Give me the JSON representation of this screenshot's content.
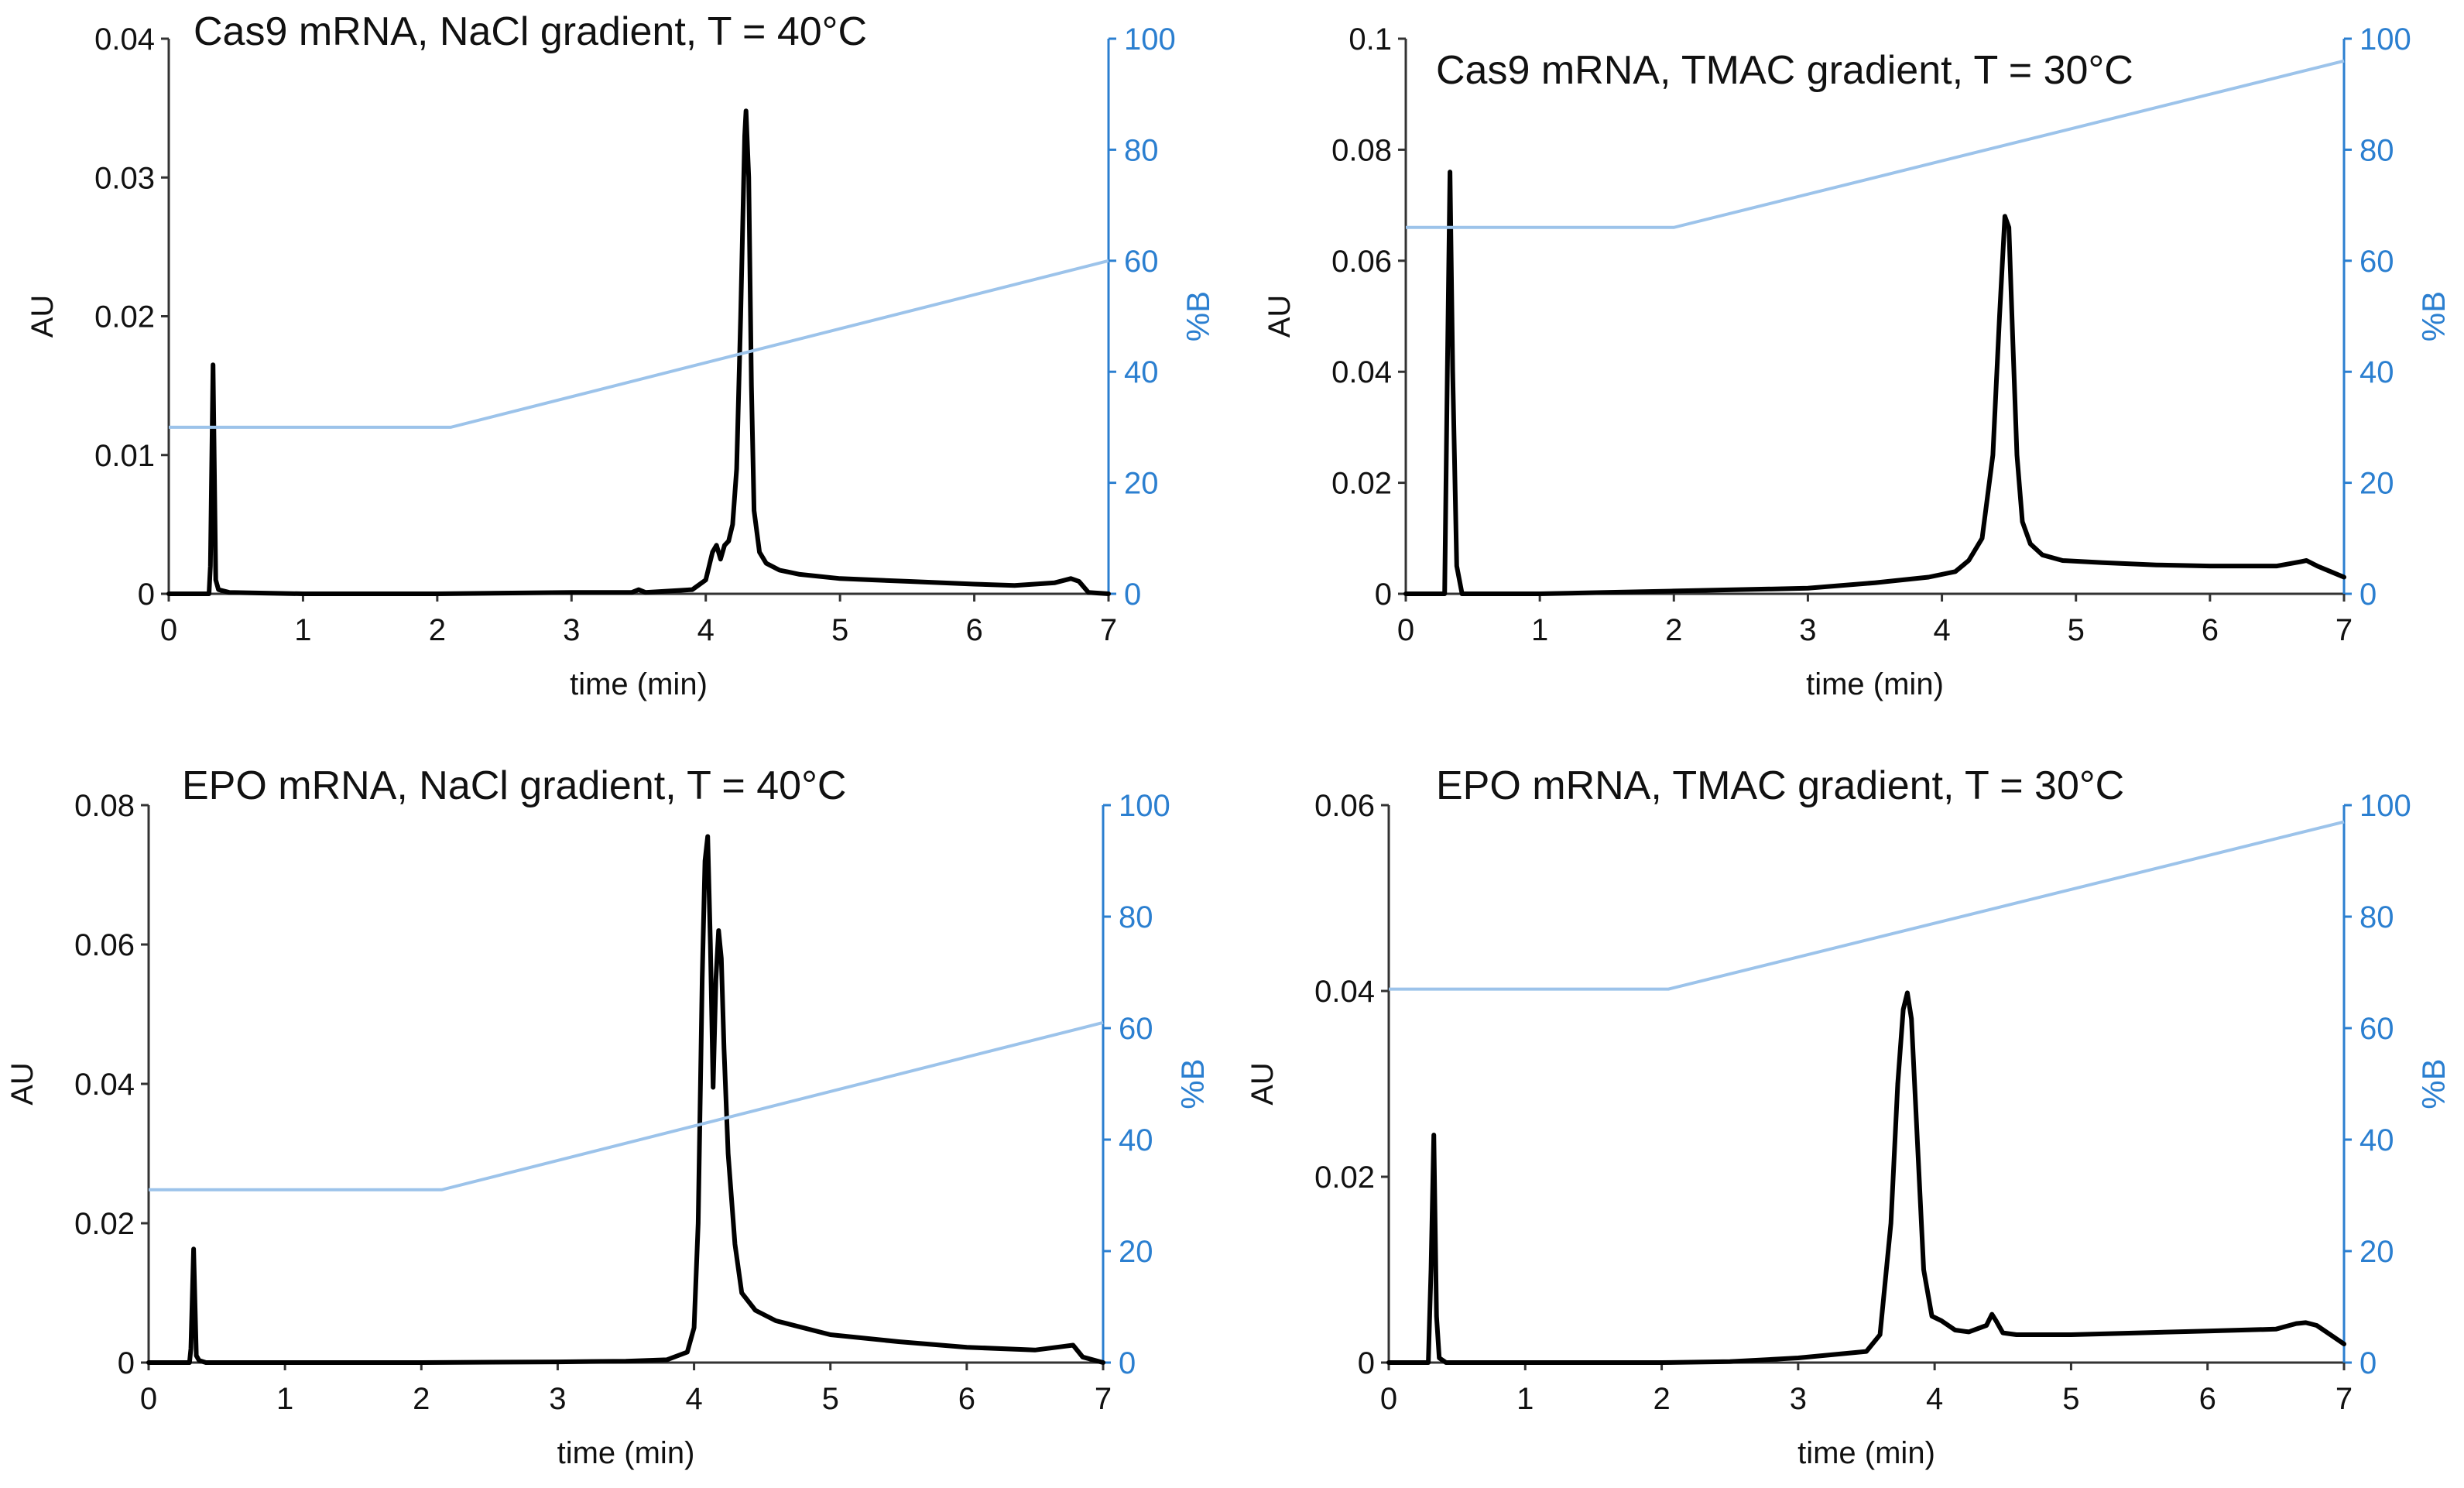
{
  "figure": {
    "colors": {
      "trace": "#000000",
      "gradient": "#9cc3ea",
      "right_axis": "#2b7fd0"
    }
  },
  "chart_data": [
    {
      "type": "line",
      "title": "Cas9 mRNA, NaCl gradient, T = 40°C",
      "xlabel": "time (min)",
      "ylabel": "AU",
      "y2label": "%B",
      "xlim": [
        0,
        7
      ],
      "ylim": [
        0,
        0.04
      ],
      "y2lim": [
        0,
        100
      ],
      "xticks": [
        "0",
        "1",
        "2",
        "3",
        "4",
        "5",
        "6",
        "7"
      ],
      "yticks": [
        "0",
        "0.01",
        "0.02",
        "0.03",
        "0.04"
      ],
      "y2ticks": [
        "0",
        "20",
        "40",
        "60",
        "80",
        "100"
      ],
      "series": [
        {
          "name": "AU",
          "axis": "left",
          "x": [
            0,
            0.3,
            0.31,
            0.33,
            0.35,
            0.37,
            0.45,
            1,
            2,
            3,
            3.45,
            3.5,
            3.55,
            3.9,
            4.0,
            4.05,
            4.08,
            4.11,
            4.14,
            4.17,
            4.2,
            4.23,
            4.26,
            4.29,
            4.3,
            4.32,
            4.34,
            4.36,
            4.4,
            4.45,
            4.55,
            4.7,
            5.0,
            5.5,
            6.0,
            6.3,
            6.6,
            6.72,
            6.78,
            6.85,
            7.0
          ],
          "y": [
            0,
            0,
            0.002,
            0.0165,
            0.001,
            0.0003,
            0.0001,
            0,
            0,
            0.0001,
            0.0001,
            0.0003,
            0.0001,
            0.0003,
            0.001,
            0.003,
            0.0035,
            0.0025,
            0.0035,
            0.0038,
            0.005,
            0.009,
            0.02,
            0.033,
            0.0348,
            0.03,
            0.015,
            0.006,
            0.003,
            0.0022,
            0.0017,
            0.0014,
            0.0011,
            0.0009,
            0.0007,
            0.0006,
            0.0008,
            0.0011,
            0.0009,
            0.0001,
            0
          ]
        },
        {
          "name": "%B",
          "axis": "right",
          "x": [
            0,
            2.1,
            7.0
          ],
          "y": [
            30,
            30,
            60
          ]
        }
      ]
    },
    {
      "type": "line",
      "title": "Cas9 mRNA, TMAC gradient, T = 30°C",
      "xlabel": "time (min)",
      "ylabel": "AU",
      "y2label": "%B",
      "xlim": [
        0,
        7
      ],
      "ylim": [
        0,
        0.1
      ],
      "y2lim": [
        0,
        100
      ],
      "xticks": [
        "0",
        "1",
        "2",
        "3",
        "4",
        "5",
        "6",
        "7"
      ],
      "yticks": [
        "0",
        "0.02",
        "0.04",
        "0.06",
        "0.08",
        "0.1"
      ],
      "y2ticks": [
        "0",
        "20",
        "40",
        "60",
        "80",
        "100"
      ],
      "series": [
        {
          "name": "AU",
          "axis": "left",
          "x": [
            0,
            0.29,
            0.31,
            0.33,
            0.35,
            0.38,
            0.42,
            1,
            2,
            3,
            3.5,
            3.9,
            4.1,
            4.2,
            4.3,
            4.38,
            4.43,
            4.47,
            4.5,
            4.53,
            4.56,
            4.6,
            4.66,
            4.75,
            4.9,
            5.2,
            5.6,
            6.0,
            6.5,
            6.68,
            6.72,
            6.8,
            6.9,
            7.0
          ],
          "y": [
            0,
            0,
            0.04,
            0.076,
            0.04,
            0.005,
            0,
            0,
            0.0005,
            0.001,
            0.002,
            0.003,
            0.004,
            0.006,
            0.01,
            0.025,
            0.05,
            0.068,
            0.066,
            0.045,
            0.025,
            0.013,
            0.009,
            0.007,
            0.006,
            0.0056,
            0.0052,
            0.005,
            0.005,
            0.0058,
            0.006,
            0.005,
            0.004,
            0.003
          ]
        },
        {
          "name": "%B",
          "axis": "right",
          "x": [
            0,
            2.0,
            7.0
          ],
          "y": [
            66,
            66,
            96
          ]
        }
      ]
    },
    {
      "type": "line",
      "title": "EPO mRNA, NaCl gradient, T = 40°C",
      "xlabel": "time (min)",
      "ylabel": "AU",
      "y2label": "%B",
      "xlim": [
        0,
        7
      ],
      "ylim": [
        0,
        0.08
      ],
      "y2lim": [
        0,
        100
      ],
      "xticks": [
        "0",
        "1",
        "2",
        "3",
        "4",
        "5",
        "6",
        "7"
      ],
      "yticks": [
        "0",
        "0.02",
        "0.04",
        "0.06",
        "0.08"
      ],
      "y2ticks": [
        "0",
        "20",
        "40",
        "60",
        "80",
        "100"
      ],
      "series": [
        {
          "name": "AU",
          "axis": "left",
          "x": [
            0,
            0.3,
            0.31,
            0.33,
            0.35,
            0.37,
            0.42,
            1,
            2,
            3,
            3.5,
            3.8,
            3.95,
            4.0,
            4.03,
            4.06,
            4.08,
            4.1,
            4.12,
            4.14,
            4.16,
            4.18,
            4.2,
            4.22,
            4.25,
            4.3,
            4.35,
            4.45,
            4.6,
            5.0,
            5.5,
            6.0,
            6.5,
            6.7,
            6.78,
            6.85,
            7.0
          ],
          "y": [
            0,
            0,
            0.002,
            0.0163,
            0.001,
            0.0003,
            0,
            0,
            0,
            0.0001,
            0.0002,
            0.0004,
            0.0015,
            0.005,
            0.02,
            0.055,
            0.072,
            0.0755,
            0.06,
            0.0395,
            0.055,
            0.062,
            0.058,
            0.045,
            0.03,
            0.017,
            0.01,
            0.0075,
            0.006,
            0.004,
            0.003,
            0.0022,
            0.0018,
            0.0023,
            0.0025,
            0.0008,
            0
          ]
        },
        {
          "name": "%B",
          "axis": "right",
          "x": [
            0,
            2.15,
            7.0
          ],
          "y": [
            31,
            31,
            61
          ]
        }
      ]
    },
    {
      "type": "line",
      "title": "EPO mRNA, TMAC gradient, T = 30°C",
      "xlabel": "time (min)",
      "ylabel": "AU",
      "y2label": "%B",
      "xlim": [
        0,
        7
      ],
      "ylim": [
        0,
        0.06
      ],
      "y2lim": [
        0,
        100
      ],
      "xticks": [
        "0",
        "1",
        "2",
        "3",
        "4",
        "5",
        "6",
        "7"
      ],
      "yticks": [
        "0",
        "0.02",
        "0.04",
        "0.06"
      ],
      "y2ticks": [
        "0",
        "20",
        "40",
        "60",
        "80",
        "100"
      ],
      "series": [
        {
          "name": "AU",
          "axis": "left",
          "x": [
            0,
            0.29,
            0.31,
            0.33,
            0.35,
            0.37,
            0.42,
            1,
            2,
            2.5,
            3.0,
            3.5,
            3.6,
            3.68,
            3.73,
            3.77,
            3.8,
            3.83,
            3.87,
            3.92,
            3.98,
            4.05,
            4.15,
            4.25,
            4.38,
            4.42,
            4.45,
            4.5,
            4.6,
            5.0,
            5.5,
            6.0,
            6.5,
            6.65,
            6.72,
            6.8,
            6.9,
            7.0
          ],
          "y": [
            0,
            0,
            0.01,
            0.0245,
            0.005,
            0.0005,
            0,
            0,
            0,
            0.0001,
            0.0005,
            0.0012,
            0.003,
            0.015,
            0.03,
            0.038,
            0.0398,
            0.037,
            0.025,
            0.01,
            0.005,
            0.0045,
            0.0035,
            0.0033,
            0.004,
            0.0052,
            0.0045,
            0.0032,
            0.003,
            0.003,
            0.0032,
            0.0034,
            0.0036,
            0.0042,
            0.0043,
            0.004,
            0.003,
            0.002
          ]
        },
        {
          "name": "%B",
          "axis": "right",
          "x": [
            0,
            2.05,
            7.0
          ],
          "y": [
            67,
            67,
            97
          ]
        }
      ]
    }
  ]
}
